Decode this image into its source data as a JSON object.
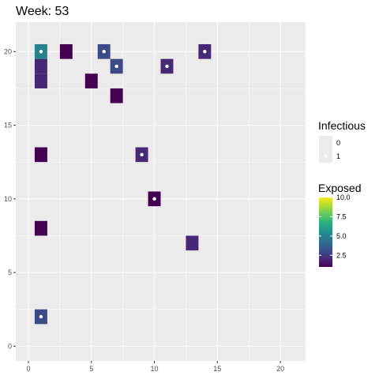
{
  "chart_data": {
    "type": "heatmap",
    "title": "Week: 53",
    "xlim": [
      -1,
      22
    ],
    "ylim": [
      -1,
      22
    ],
    "x_ticks": [
      0,
      5,
      10,
      15,
      20
    ],
    "y_ticks": [
      0,
      5,
      10,
      15,
      20
    ],
    "grid": true,
    "legend_placement": "right",
    "legend_infectious": {
      "title": "Infectious",
      "entries": [
        {
          "label": "0",
          "value": 0
        },
        {
          "label": "1",
          "value": 1
        }
      ]
    },
    "legend_exposed": {
      "title": "Exposed",
      "range": [
        1,
        10
      ],
      "tick_labels": [
        "10.0",
        "7.5",
        "5.0",
        "2.5"
      ],
      "tick_values": [
        10,
        7.5,
        5,
        2.5
      ]
    },
    "tiles": [
      {
        "x": 1,
        "y": 20,
        "exposed": 5,
        "infectious": 1
      },
      {
        "x": 1,
        "y": 19,
        "exposed": 2,
        "infectious": 0
      },
      {
        "x": 1,
        "y": 18,
        "exposed": 2,
        "infectious": 0
      },
      {
        "x": 3,
        "y": 20,
        "exposed": 1,
        "infectious": 0
      },
      {
        "x": 6,
        "y": 20,
        "exposed": 3,
        "infectious": 1
      },
      {
        "x": 7,
        "y": 19,
        "exposed": 3,
        "infectious": 1
      },
      {
        "x": 5,
        "y": 18,
        "exposed": 1,
        "infectious": 0
      },
      {
        "x": 7,
        "y": 17,
        "exposed": 1,
        "infectious": 0
      },
      {
        "x": 11,
        "y": 19,
        "exposed": 2,
        "infectious": 1
      },
      {
        "x": 14,
        "y": 20,
        "exposed": 2,
        "infectious": 1
      },
      {
        "x": 1,
        "y": 13,
        "exposed": 1,
        "infectious": 0
      },
      {
        "x": 9,
        "y": 13,
        "exposed": 2,
        "infectious": 1
      },
      {
        "x": 10,
        "y": 10,
        "exposed": 1,
        "infectious": 1
      },
      {
        "x": 1,
        "y": 8,
        "exposed": 1,
        "infectious": 0
      },
      {
        "x": 13,
        "y": 7,
        "exposed": 2,
        "infectious": 0
      },
      {
        "x": 1,
        "y": 2,
        "exposed": 3,
        "infectious": 1
      }
    ],
    "colors": {
      "panel": "#EBEBEB",
      "grid": "#FFFFFF",
      "point": "#FFFFFF",
      "axis_text": "#4D4D4D",
      "viridis": [
        "#440154",
        "#472D7B",
        "#3B528B",
        "#2C728E",
        "#21908C",
        "#27AD81",
        "#5DC863",
        "#AADC32",
        "#FDE725"
      ]
    }
  }
}
